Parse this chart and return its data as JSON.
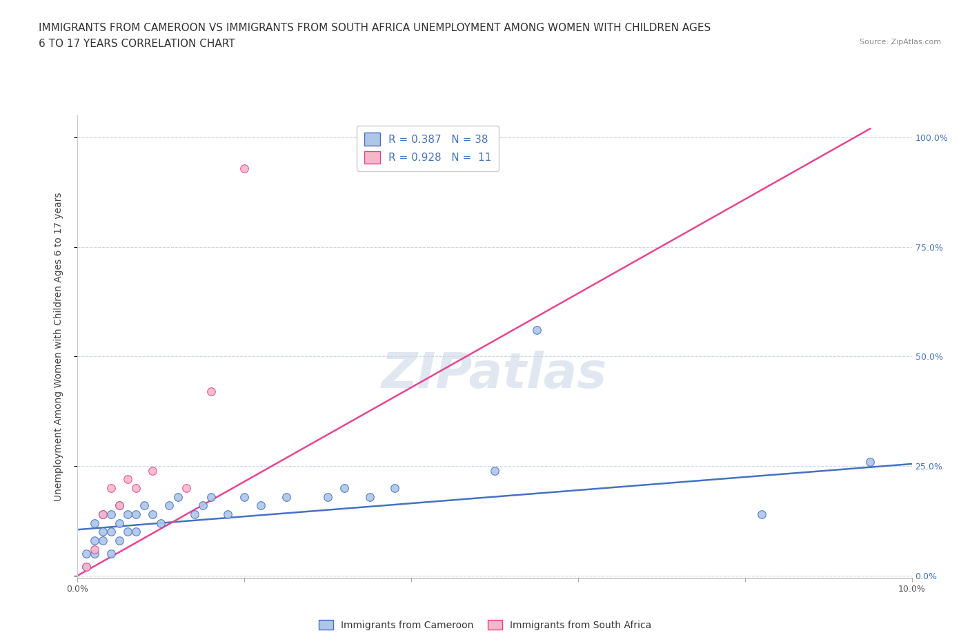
{
  "title_line1": "IMMIGRANTS FROM CAMEROON VS IMMIGRANTS FROM SOUTH AFRICA UNEMPLOYMENT AMONG WOMEN WITH CHILDREN AGES",
  "title_line2": "6 TO 17 YEARS CORRELATION CHART",
  "source": "Source: ZipAtlas.com",
  "ylabel": "Unemployment Among Women with Children Ages 6 to 17 years",
  "watermark": "ZIPatlas",
  "blue_R": 0.387,
  "blue_N": 38,
  "pink_R": 0.928,
  "pink_N": 11,
  "xlim": [
    0.0,
    0.1
  ],
  "ylim": [
    -0.005,
    1.05
  ],
  "yticks": [
    0.0,
    0.25,
    0.5,
    0.75,
    1.0
  ],
  "ytick_labels": [
    "0.0%",
    "25.0%",
    "50.0%",
    "75.0%",
    "100.0%"
  ],
  "xticks": [
    0.0,
    0.02,
    0.04,
    0.06,
    0.08,
    0.1
  ],
  "xtick_labels": [
    "0.0%",
    "",
    "",
    "",
    "",
    "10.0%"
  ],
  "blue_scatter_x": [
    0.001,
    0.001,
    0.002,
    0.002,
    0.002,
    0.003,
    0.003,
    0.003,
    0.004,
    0.004,
    0.004,
    0.005,
    0.005,
    0.005,
    0.006,
    0.006,
    0.007,
    0.007,
    0.008,
    0.009,
    0.01,
    0.011,
    0.012,
    0.014,
    0.015,
    0.016,
    0.018,
    0.02,
    0.022,
    0.025,
    0.03,
    0.032,
    0.035,
    0.038,
    0.05,
    0.055,
    0.082,
    0.095
  ],
  "blue_scatter_y": [
    0.02,
    0.05,
    0.05,
    0.08,
    0.12,
    0.08,
    0.1,
    0.14,
    0.05,
    0.1,
    0.14,
    0.08,
    0.12,
    0.16,
    0.1,
    0.14,
    0.1,
    0.14,
    0.16,
    0.14,
    0.12,
    0.16,
    0.18,
    0.14,
    0.16,
    0.18,
    0.14,
    0.18,
    0.16,
    0.18,
    0.18,
    0.2,
    0.18,
    0.2,
    0.24,
    0.56,
    0.14,
    0.26
  ],
  "pink_scatter_x": [
    0.001,
    0.002,
    0.003,
    0.004,
    0.005,
    0.006,
    0.007,
    0.009,
    0.013,
    0.016,
    0.02
  ],
  "pink_scatter_y": [
    0.02,
    0.06,
    0.14,
    0.2,
    0.16,
    0.22,
    0.2,
    0.24,
    0.2,
    0.42,
    0.93
  ],
  "blue_line_x0": 0.0,
  "blue_line_y0": 0.105,
  "blue_line_x1": 0.1,
  "blue_line_y1": 0.255,
  "pink_line_x0": 0.0,
  "pink_line_y0": 0.0,
  "pink_line_x1": 0.095,
  "pink_line_y1": 1.02,
  "blue_color": "#aec6e8",
  "pink_color": "#f4b8c8",
  "blue_line_color": "#4472c4",
  "pink_line_color": "#e84393",
  "legend_text_color": "#4472c4",
  "grid_color": "#c8d8e8",
  "background_color": "#ffffff",
  "title_fontsize": 11,
  "axis_label_fontsize": 10,
  "tick_fontsize": 9,
  "legend_fontsize": 11,
  "watermark_color": "#ccd8e8",
  "watermark_fontsize": 52,
  "right_tick_color": "#4472c4"
}
